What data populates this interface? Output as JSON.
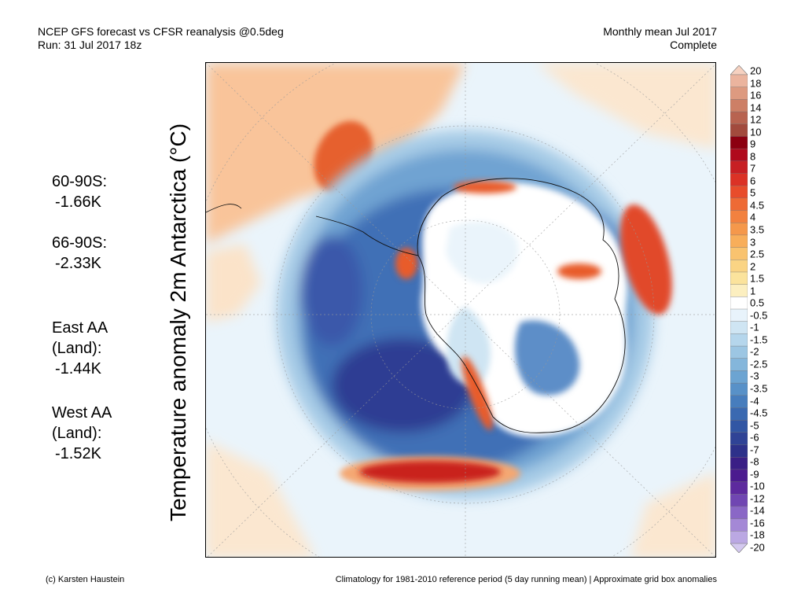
{
  "header": {
    "title": "NCEP GFS forecast vs CFSR reanalysis @0.5deg",
    "run": "Run: 31 Jul 2017 18z",
    "period": "Monthly mean Jul 2017",
    "status": "Complete"
  },
  "axis_label": "Temperature anomaly 2m Antarctica (°C)",
  "stats": [
    {
      "label": "60-90S:",
      "value": "-1.66K"
    },
    {
      "label": "66-90S:",
      "value": "-2.33K"
    },
    {
      "label": "East AA\n(Land):",
      "value": "-1.44K"
    },
    {
      "label": "West AA\n(Land):",
      "value": "-1.52K"
    }
  ],
  "colorbar": {
    "labels": [
      "20",
      "18",
      "16",
      "14",
      "12",
      "10",
      "9",
      "8",
      "7",
      "6",
      "5",
      "4.5",
      "4",
      "3.5",
      "3",
      "2.5",
      "2",
      "1.5",
      "1",
      "0.5",
      "-0.5",
      "-1",
      "-1.5",
      "-2",
      "-2.5",
      "-3",
      "-3.5",
      "-4",
      "-4.5",
      "-5",
      "-6",
      "-7",
      "-8",
      "-9",
      "-10",
      "-12",
      "-14",
      "-16",
      "-18",
      "-20"
    ],
    "colors": [
      "#f6d1c0",
      "#ebb49e",
      "#dd9a80",
      "#cd7f66",
      "#b86350",
      "#a24a3d",
      "#8c0011",
      "#b0091c",
      "#c71f24",
      "#db3226",
      "#e84c2b",
      "#ee6a35",
      "#f2813f",
      "#f5984b",
      "#f8ae5a",
      "#f9c36f",
      "#fad484",
      "#fbe39c",
      "#fcefc0",
      "#ffffff",
      "#e8f3fb",
      "#cfe5f3",
      "#b5d6ec",
      "#9cc6e3",
      "#84b6db",
      "#6ca4d2",
      "#5891c8",
      "#477dbd",
      "#3a69b1",
      "#3156a4",
      "#2f4396",
      "#2d318a",
      "#3a1f86",
      "#4b1b8f",
      "#5d2a9e",
      "#7046b2",
      "#8a67c6",
      "#a488d6",
      "#bba8e3",
      "#d3c8ef"
    ]
  },
  "footer": {
    "credit": "(c) Karsten Haustein",
    "note": "Climatology for 1981-2010 reference period (5 day running mean) | Approximate grid box anomalies"
  }
}
